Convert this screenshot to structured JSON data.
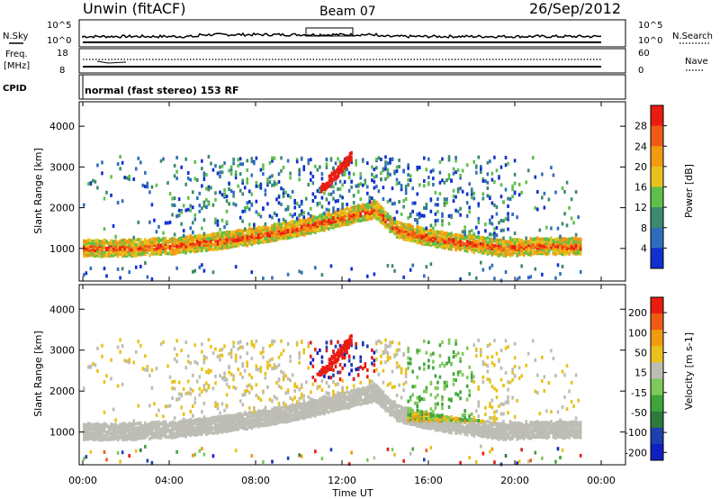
{
  "header": {
    "station": "Unwin (fitACF)",
    "beam": "Beam 07",
    "date": "26/Sep/2012"
  },
  "panels": {
    "nsky": {
      "label": "N.Sky",
      "right_label": "N.Search",
      "left_ticks": [
        "10^5",
        "10^0"
      ],
      "right_ticks": [
        "10^5",
        "10^0"
      ]
    },
    "freq": {
      "label_line1": "Freq.",
      "label_line2": "[MHz]",
      "right_label": "Nave",
      "left_ticks": [
        "18",
        "8"
      ],
      "right_ticks": [
        "60",
        "0"
      ]
    },
    "cpid": {
      "label": "CPID",
      "value": "normal (fast stereo) 153 RF"
    }
  },
  "colors": {
    "power": [
      "#1030d0",
      "#2f6dbb",
      "#3d8a6c",
      "#5fbf4a",
      "#e8c21a",
      "#f29a12",
      "#ef5b14",
      "#e81d10"
    ],
    "velocity": [
      "#e81d10",
      "#ef5b14",
      "#f29a12",
      "#e8c21a",
      "#bdbdb5",
      "#7fc85a",
      "#3fa53a",
      "#2e7a3c",
      "#1e3fb0",
      "#1020c0"
    ]
  },
  "chart_data": [
    {
      "type": "heatmap",
      "title": "Power",
      "xlabel": "Time UT",
      "ylabel": "Slant Range [km]",
      "x_ticks": [
        "00:00",
        "04:00",
        "08:00",
        "12:00",
        "16:00",
        "20:00",
        "00:00"
      ],
      "y_ticks": [
        1000,
        2000,
        3000,
        4000
      ],
      "ylim": [
        200,
        4600
      ],
      "colorbar": {
        "label": "Power [dB]",
        "ticks": [
          4,
          8,
          12,
          16,
          20,
          24,
          28
        ]
      },
      "echo_bands": [
        {
          "x": [
            0,
            2,
            4,
            6,
            8,
            10,
            12,
            13.5,
            14.5,
            16,
            18,
            19.5,
            21,
            23
          ],
          "y": [
            1050,
            1050,
            1100,
            1200,
            1350,
            1550,
            1800,
            2000,
            1500,
            1300,
            1150,
            1050,
            1100,
            1100
          ]
        }
      ]
    },
    {
      "type": "heatmap",
      "title": "Velocity",
      "xlabel": "Time UT",
      "ylabel": "Slant Range [km]",
      "x_ticks": [
        "00:00",
        "04:00",
        "08:00",
        "12:00",
        "16:00",
        "20:00",
        "00:00"
      ],
      "y_ticks": [
        1000,
        2000,
        3000,
        4000
      ],
      "ylim": [
        200,
        4600
      ],
      "colorbar": {
        "label": "Velocity [m s-1]",
        "ticks": [
          200,
          100,
          50,
          15,
          -15,
          -50,
          -100,
          -200
        ]
      }
    }
  ]
}
